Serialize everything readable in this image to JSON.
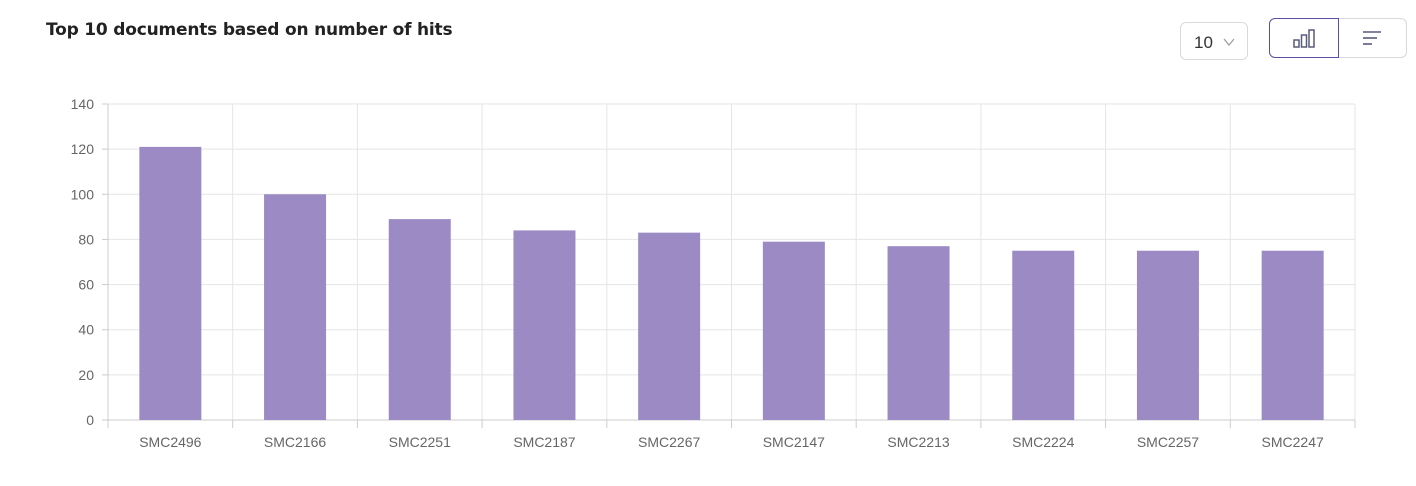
{
  "header": {
    "title": "Top 10 documents based on number of hits",
    "page_size_value": "10",
    "page_size_icon": "chevron-down-icon",
    "view_toggle": [
      {
        "icon": "bar-chart-icon",
        "active": true
      },
      {
        "icon": "horizontal-bars-icon",
        "active": false
      }
    ]
  },
  "colors": {
    "bar": "#9b8ac4",
    "active_border": "#5b4fa3",
    "grid": "#e5e5e5",
    "tick_text": "#666666"
  },
  "chart_data": {
    "type": "bar",
    "title": "",
    "xlabel": "",
    "ylabel": "",
    "categories": [
      "SMC2496",
      "SMC2166",
      "SMC2251",
      "SMC2187",
      "SMC2267",
      "SMC2147",
      "SMC2213",
      "SMC2224",
      "SMC2257",
      "SMC2247"
    ],
    "values": [
      121,
      100,
      89,
      84,
      83,
      79,
      77,
      75,
      75,
      75
    ],
    "ylim": [
      0,
      140
    ],
    "yticks": [
      "0",
      "20",
      "40",
      "60",
      "80",
      "100",
      "120",
      "140"
    ],
    "grid": true,
    "legend": false
  }
}
